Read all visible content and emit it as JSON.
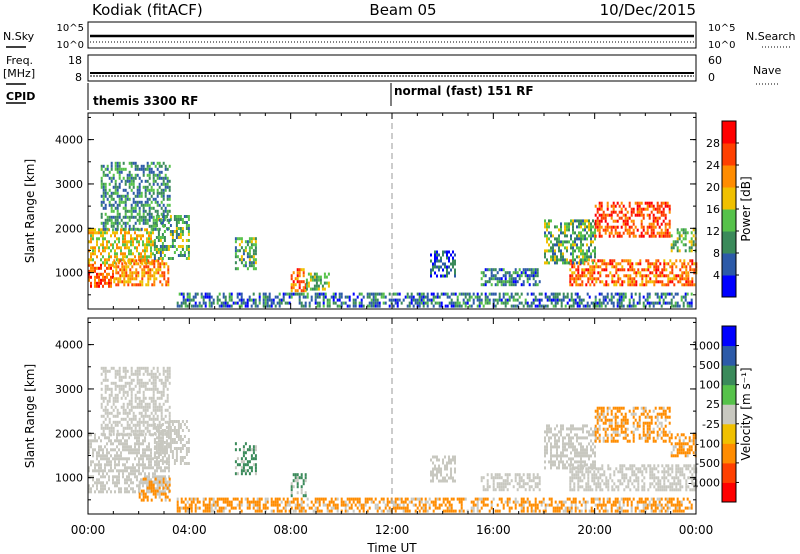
{
  "header": {
    "station": "Kodiak (fitACF)",
    "beam": "Beam 05",
    "date": "10/Dec/2015"
  },
  "top_panels": {
    "nsky_label": "N.Sky",
    "nsky_ticks": [
      "10^5",
      "10^0"
    ],
    "nsearch_label": "N.Search",
    "nsearch_ticks": [
      "10^5",
      "10^0"
    ],
    "freq_label_1": "Freq.",
    "freq_label_2": "[MHz]",
    "freq_ticks": [
      "18",
      "8"
    ],
    "nave_label": "Nave",
    "nave_ticks": [
      "60",
      "0"
    ],
    "cpid_label": "CPID",
    "cpid_modes": [
      {
        "start": "00:00",
        "name": "themis 3300 RF"
      },
      {
        "start": "12:00",
        "name": "normal (fast) 151 RF"
      }
    ]
  },
  "time_axis": {
    "ticks": [
      "00:00",
      "04:00",
      "08:00",
      "12:00",
      "16:00",
      "20:00",
      "00:00"
    ],
    "label": "Time UT"
  },
  "colors": {
    "power_scale": [
      "#0000ff",
      "#2c5aa8",
      "#3a8a5a",
      "#56c24a",
      "#f0c000",
      "#ff8c00",
      "#ff4000",
      "#ff0000"
    ],
    "velocity_scale": [
      "#ff0000",
      "#ff4000",
      "#ff8c00",
      "#f0c000",
      "#c8c8c0",
      "#56c24a",
      "#3a8a5a",
      "#2c5aa8",
      "#0000ff"
    ],
    "ground_scatter": "#c8c8c0"
  },
  "chart_data": [
    {
      "type": "heatmap",
      "title": "",
      "xlabel": "",
      "ylabel": "Slant Range [km]",
      "xlim": [
        0,
        24
      ],
      "ylim": [
        180,
        4600
      ],
      "yticks": [
        "4000",
        "3000",
        "2000",
        "1000"
      ],
      "colorbar_label": "Power [dB]",
      "colorbar_ticks": [
        "28",
        "24",
        "20",
        "16",
        "12",
        "8",
        "4"
      ],
      "clim": [
        0,
        32
      ],
      "regions": [
        {
          "t0": 0.0,
          "t1": 1.0,
          "r0": 700,
          "r1": 1200,
          "level": 26
        },
        {
          "t0": 0.0,
          "t1": 2.6,
          "r0": 1200,
          "r1": 2000,
          "level": 18
        },
        {
          "t0": 1.0,
          "t1": 3.2,
          "r0": 700,
          "r1": 1300,
          "level": 22
        },
        {
          "t0": 2.6,
          "t1": 4.0,
          "r0": 1300,
          "r1": 2300,
          "level": 12
        },
        {
          "t0": 0.5,
          "t1": 3.2,
          "r0": 2000,
          "r1": 3500,
          "level": 10
        },
        {
          "t0": 5.8,
          "t1": 6.6,
          "r0": 1100,
          "r1": 1800,
          "level": 12
        },
        {
          "t0": 8.0,
          "t1": 8.6,
          "r0": 600,
          "r1": 1100,
          "level": 24
        },
        {
          "t0": 8.6,
          "t1": 9.5,
          "r0": 600,
          "r1": 1000,
          "level": 14
        },
        {
          "t0": 3.5,
          "t1": 23.8,
          "r0": 250,
          "r1": 550,
          "level": 8
        },
        {
          "t0": 13.5,
          "t1": 14.5,
          "r0": 900,
          "r1": 1500,
          "level": 6
        },
        {
          "t0": 15.5,
          "t1": 17.8,
          "r0": 700,
          "r1": 1100,
          "level": 8
        },
        {
          "t0": 19.0,
          "t1": 24.0,
          "r0": 700,
          "r1": 1300,
          "level": 24
        },
        {
          "t0": 18.0,
          "t1": 20.0,
          "r0": 1200,
          "r1": 2200,
          "level": 12
        },
        {
          "t0": 20.0,
          "t1": 23.0,
          "r0": 1800,
          "r1": 2600,
          "level": 26
        },
        {
          "t0": 23.0,
          "t1": 24.0,
          "r0": 1500,
          "r1": 2000,
          "level": 14
        }
      ]
    },
    {
      "type": "heatmap",
      "title": "",
      "xlabel": "Time UT",
      "ylabel": "Slant Range [km]",
      "xlim": [
        0,
        24
      ],
      "ylim": [
        180,
        4600
      ],
      "yticks": [
        "4000",
        "3000",
        "2000",
        "1000"
      ],
      "colorbar_label": "Velocity [m s⁻¹]",
      "colorbar_ticks": [
        "1000",
        "500",
        "100",
        "25",
        "-25",
        "-100",
        "-500",
        "-1000"
      ],
      "clim": [
        -1000,
        1000
      ],
      "regions": [
        {
          "t0": 0.0,
          "t1": 3.2,
          "r0": 700,
          "r1": 2000,
          "level": 0
        },
        {
          "t0": 2.6,
          "t1": 4.0,
          "r0": 1300,
          "r1": 2300,
          "level": 0
        },
        {
          "t0": 2.0,
          "t1": 3.2,
          "r0": 500,
          "r1": 1000,
          "level": -300
        },
        {
          "t0": 0.5,
          "t1": 3.2,
          "r0": 2000,
          "r1": 3500,
          "level": 0
        },
        {
          "t0": 5.8,
          "t1": 6.6,
          "r0": 1100,
          "r1": 1800,
          "level": 300
        },
        {
          "t0": 8.0,
          "t1": 8.6,
          "r0": 600,
          "r1": 1100,
          "level": 300
        },
        {
          "t0": 3.5,
          "t1": 23.8,
          "r0": 250,
          "r1": 550,
          "level": -100
        },
        {
          "t0": 13.5,
          "t1": 14.5,
          "r0": 900,
          "r1": 1500,
          "level": 0
        },
        {
          "t0": 15.5,
          "t1": 17.8,
          "r0": 700,
          "r1": 1100,
          "level": 0
        },
        {
          "t0": 19.0,
          "t1": 24.0,
          "r0": 700,
          "r1": 1300,
          "level": 0
        },
        {
          "t0": 18.0,
          "t1": 20.0,
          "r0": 1200,
          "r1": 2200,
          "level": 0
        },
        {
          "t0": 20.0,
          "t1": 23.0,
          "r0": 1800,
          "r1": 2600,
          "level": -300
        },
        {
          "t0": 23.0,
          "t1": 24.0,
          "r0": 1500,
          "r1": 2000,
          "level": -100
        }
      ]
    }
  ]
}
